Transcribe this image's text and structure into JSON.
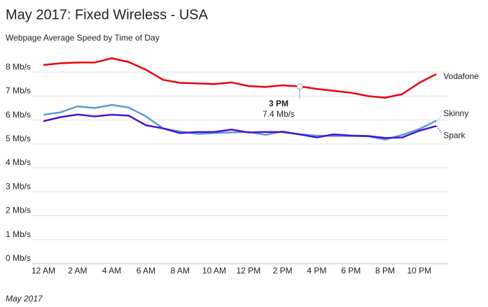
{
  "chart_data": {
    "type": "line",
    "title": "May 2017: Fixed Wireless - USA",
    "subtitle": "Webpage Average Speed by Time of Day",
    "footer": "May 2017",
    "categories": [
      "12 AM",
      null,
      "2 AM",
      null,
      "4 AM",
      null,
      "6 AM",
      null,
      "8 AM",
      null,
      "10 AM",
      null,
      "12 PM",
      null,
      "2 PM",
      null,
      "4 PM",
      null,
      "6 PM",
      null,
      "8 PM",
      null,
      "10 PM",
      null
    ],
    "series": [
      {
        "name": "Vodafone",
        "color": "#e8000b",
        "values": [
          8.3,
          8.37,
          8.4,
          8.4,
          8.58,
          8.42,
          8.1,
          7.68,
          7.55,
          7.53,
          7.5,
          7.57,
          7.42,
          7.38,
          7.45,
          7.4,
          7.3,
          7.22,
          7.14,
          7.0,
          6.93,
          7.08,
          7.55,
          7.92
        ]
      },
      {
        "name": "Skinny",
        "color": "#5b9bd5",
        "values": [
          6.22,
          6.32,
          6.57,
          6.5,
          6.63,
          6.52,
          6.15,
          5.65,
          5.52,
          5.42,
          5.45,
          5.48,
          5.5,
          5.38,
          5.52,
          5.4,
          5.35,
          5.33,
          5.33,
          5.32,
          5.18,
          5.38,
          5.62,
          5.97
        ]
      },
      {
        "name": "Spark",
        "color": "#4a12d6",
        "values": [
          5.95,
          6.12,
          6.23,
          6.15,
          6.22,
          6.18,
          5.78,
          5.65,
          5.45,
          5.5,
          5.5,
          5.6,
          5.48,
          5.5,
          5.5,
          5.4,
          5.27,
          5.4,
          5.35,
          5.33,
          5.25,
          5.27,
          5.55,
          5.75
        ]
      }
    ],
    "annotation": {
      "series": 0,
      "index": 15,
      "title": "3 PM",
      "text": "7.4 Mb/s"
    },
    "ylim": [
      0,
      8.5
    ],
    "yticks": [
      {
        "value": 0,
        "label": "0 Mb/s"
      },
      {
        "value": 1,
        "label": "1 Mb/s"
      },
      {
        "value": 2,
        "label": "2 Mb/s"
      },
      {
        "value": 3,
        "label": "3 Mb/s"
      },
      {
        "value": 4,
        "label": "4 Mb/s"
      },
      {
        "value": 5,
        "label": "5 Mb/s"
      },
      {
        "value": 6,
        "label": "6 Mb/s"
      },
      {
        "value": 7,
        "label": "7 Mb/s"
      },
      {
        "value": 8,
        "label": "8 Mb/s"
      }
    ],
    "grid": true
  }
}
